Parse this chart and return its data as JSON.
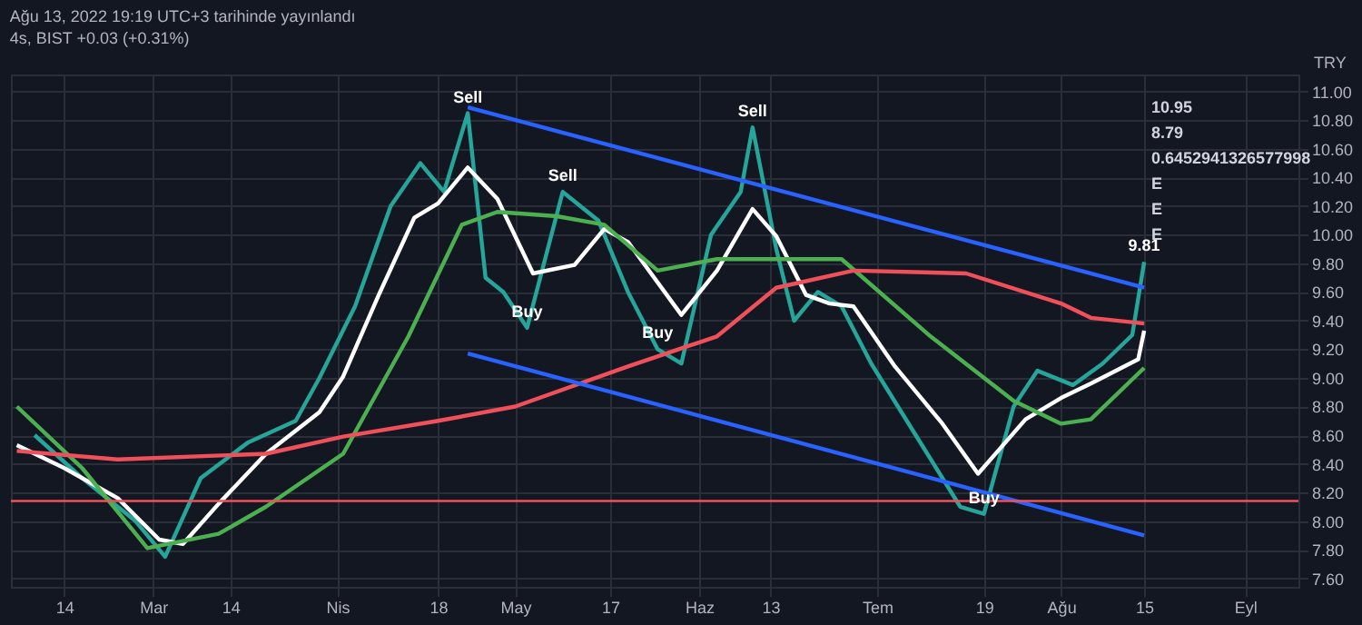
{
  "chart_data": {
    "type": "line",
    "title": "Ağu 13, 2022 19:19 UTC+3 tarihinde yayınlandı",
    "subtitle": "4s, BIST +0.03 (+0.31%)",
    "ylabel": "TRY",
    "xlim": [
      "2022-02-05",
      "2022-09-10"
    ],
    "ylim": [
      7.54,
      11.12
    ],
    "xticks": [
      {
        "value": "2022-02-14",
        "label": "14"
      },
      {
        "value": "2022-03-01",
        "label": "Mar"
      },
      {
        "value": "2022-03-14",
        "label": "14"
      },
      {
        "value": "2022-04-01",
        "label": "Nis"
      },
      {
        "value": "2022-04-18",
        "label": "18"
      },
      {
        "value": "2022-05-01",
        "label": "May"
      },
      {
        "value": "2022-05-17",
        "label": "17"
      },
      {
        "value": "2022-06-01",
        "label": "Haz"
      },
      {
        "value": "2022-06-13",
        "label": "13"
      },
      {
        "value": "2022-07-01",
        "label": "Tem"
      },
      {
        "value": "2022-07-19",
        "label": "19"
      },
      {
        "value": "2022-08-01",
        "label": "Ağu"
      },
      {
        "value": "2022-08-15",
        "label": "15"
      },
      {
        "value": "2022-09-01",
        "label": "Eyl"
      }
    ],
    "yticks": [
      {
        "value": 7.6,
        "label": "7.60"
      },
      {
        "value": 7.8,
        "label": "7.80"
      },
      {
        "value": 8.0,
        "label": "8.00"
      },
      {
        "value": 8.2,
        "label": "8.20"
      },
      {
        "value": 8.4,
        "label": "8.40"
      },
      {
        "value": 8.6,
        "label": "8.60"
      },
      {
        "value": 8.8,
        "label": "8.80"
      },
      {
        "value": 9.0,
        "label": "9.00"
      },
      {
        "value": 9.2,
        "label": "9.20"
      },
      {
        "value": 9.4,
        "label": "9.40"
      },
      {
        "value": 9.6,
        "label": "9.60"
      },
      {
        "value": 9.8,
        "label": "9.80"
      },
      {
        "value": 10.0,
        "label": "10.00"
      },
      {
        "value": 10.2,
        "label": "10.20"
      },
      {
        "value": 10.4,
        "label": "10.40"
      },
      {
        "value": 10.6,
        "label": "10.60"
      },
      {
        "value": 10.8,
        "label": "10.80"
      },
      {
        "value": 11.0,
        "label": "11.00"
      }
    ],
    "grid": true,
    "series": [
      {
        "color": "#26a69a",
        "x": [
          "2022-02-09",
          "2022-02-17",
          "2022-02-26",
          "2022-03-03",
          "2022-03-09",
          "2022-03-17",
          "2022-03-25",
          "2022-03-29",
          "2022-04-04",
          "2022-04-10",
          "2022-04-15",
          "2022-04-19",
          "2022-04-23",
          "2022-04-26",
          "2022-04-29",
          "2022-05-03",
          "2022-05-09",
          "2022-05-15",
          "2022-05-20",
          "2022-05-25",
          "2022-05-29",
          "2022-06-03",
          "2022-06-08",
          "2022-06-10",
          "2022-06-14",
          "2022-06-17",
          "2022-06-21",
          "2022-06-25",
          "2022-06-30",
          "2022-07-06",
          "2022-07-15",
          "2022-07-19",
          "2022-07-24",
          "2022-07-28",
          "2022-08-03",
          "2022-08-08",
          "2022-08-13",
          "2022-08-15"
        ],
        "values": [
          8.6,
          8.3,
          8.0,
          7.75,
          8.3,
          8.55,
          8.7,
          9.0,
          9.5,
          10.2,
          10.5,
          10.3,
          10.85,
          9.7,
          9.6,
          9.35,
          10.3,
          10.1,
          9.6,
          9.2,
          9.1,
          10.0,
          10.3,
          10.75,
          9.9,
          9.4,
          9.6,
          9.5,
          9.1,
          8.7,
          8.1,
          8.05,
          8.8,
          9.05,
          8.95,
          9.1,
          9.3,
          9.81
        ]
      },
      {
        "color": "#ffffff",
        "x": [
          "2022-02-06",
          "2022-02-14",
          "2022-02-23",
          "2022-03-02",
          "2022-03-06",
          "2022-03-12",
          "2022-03-20",
          "2022-03-29",
          "2022-04-02",
          "2022-04-08",
          "2022-04-14",
          "2022-04-18",
          "2022-04-23",
          "2022-04-28",
          "2022-05-04",
          "2022-05-11",
          "2022-05-16",
          "2022-05-20",
          "2022-05-29",
          "2022-06-04",
          "2022-06-10",
          "2022-06-14",
          "2022-06-19",
          "2022-06-23",
          "2022-06-27",
          "2022-07-04",
          "2022-07-12",
          "2022-07-18",
          "2022-07-22",
          "2022-07-26",
          "2022-08-01",
          "2022-08-06",
          "2022-08-14",
          "2022-08-15"
        ],
        "values": [
          8.53,
          8.37,
          8.16,
          7.87,
          7.84,
          8.12,
          8.47,
          8.76,
          9.01,
          9.58,
          10.12,
          10.22,
          10.47,
          10.25,
          9.73,
          9.79,
          10.04,
          9.95,
          9.44,
          9.75,
          10.18,
          9.99,
          9.58,
          9.52,
          9.5,
          9.08,
          8.68,
          8.33,
          8.52,
          8.71,
          8.86,
          8.96,
          9.13,
          9.33
        ]
      },
      {
        "color": "#4caf50",
        "x": [
          "2022-02-06",
          "2022-02-17",
          "2022-02-28",
          "2022-03-12",
          "2022-03-20",
          "2022-04-02",
          "2022-04-13",
          "2022-04-22",
          "2022-04-28",
          "2022-05-08",
          "2022-05-16",
          "2022-05-25",
          "2022-06-04",
          "2022-06-19",
          "2022-06-25",
          "2022-07-10",
          "2022-07-24",
          "2022-08-01",
          "2022-08-06",
          "2022-08-15"
        ],
        "values": [
          8.8,
          8.37,
          7.81,
          7.91,
          8.1,
          8.47,
          9.29,
          10.07,
          10.16,
          10.13,
          10.07,
          9.75,
          9.83,
          9.83,
          9.83,
          9.29,
          8.84,
          8.68,
          8.71,
          9.07
        ]
      },
      {
        "color": "#f0505a",
        "x": [
          "2022-02-06",
          "2022-02-23",
          "2022-03-20",
          "2022-04-02",
          "2022-04-18",
          "2022-05-01",
          "2022-05-20",
          "2022-06-04",
          "2022-06-14",
          "2022-06-27",
          "2022-07-16",
          "2022-08-01",
          "2022-08-06",
          "2022-08-15"
        ],
        "values": [
          8.49,
          8.43,
          8.47,
          8.59,
          8.7,
          8.8,
          9.08,
          9.29,
          9.63,
          9.75,
          9.73,
          9.52,
          9.42,
          9.38
        ]
      },
      {
        "color": "#2962ff",
        "x": [
          "2022-04-23",
          "2022-08-15"
        ],
        "values": [
          10.89,
          9.63
        ]
      },
      {
        "color": "#2962ff",
        "x": [
          "2022-04-23",
          "2022-08-15"
        ],
        "values": [
          9.17,
          7.9
        ]
      }
    ],
    "ref_lines": [
      {
        "axis": "y",
        "value": 8.14,
        "color": "#f0505a"
      }
    ],
    "annotations": [
      {
        "text": "Sell",
        "x": "2022-04-23",
        "y": 10.85
      },
      {
        "text": "Sell",
        "x": "2022-05-09",
        "y": 10.3
      },
      {
        "text": "Sell",
        "x": "2022-06-10",
        "y": 10.75
      },
      {
        "text": "Buy",
        "x": "2022-05-03",
        "y": 9.35
      },
      {
        "text": "Buy",
        "x": "2022-05-25",
        "y": 9.2
      },
      {
        "text": "Buy",
        "x": "2022-07-19",
        "y": 8.05
      },
      {
        "text": "9.81",
        "x": "2022-08-15",
        "y": 9.81
      },
      "10.95",
      "8.79",
      "0.6452941326577998",
      "E",
      "E",
      "E"
    ]
  }
}
